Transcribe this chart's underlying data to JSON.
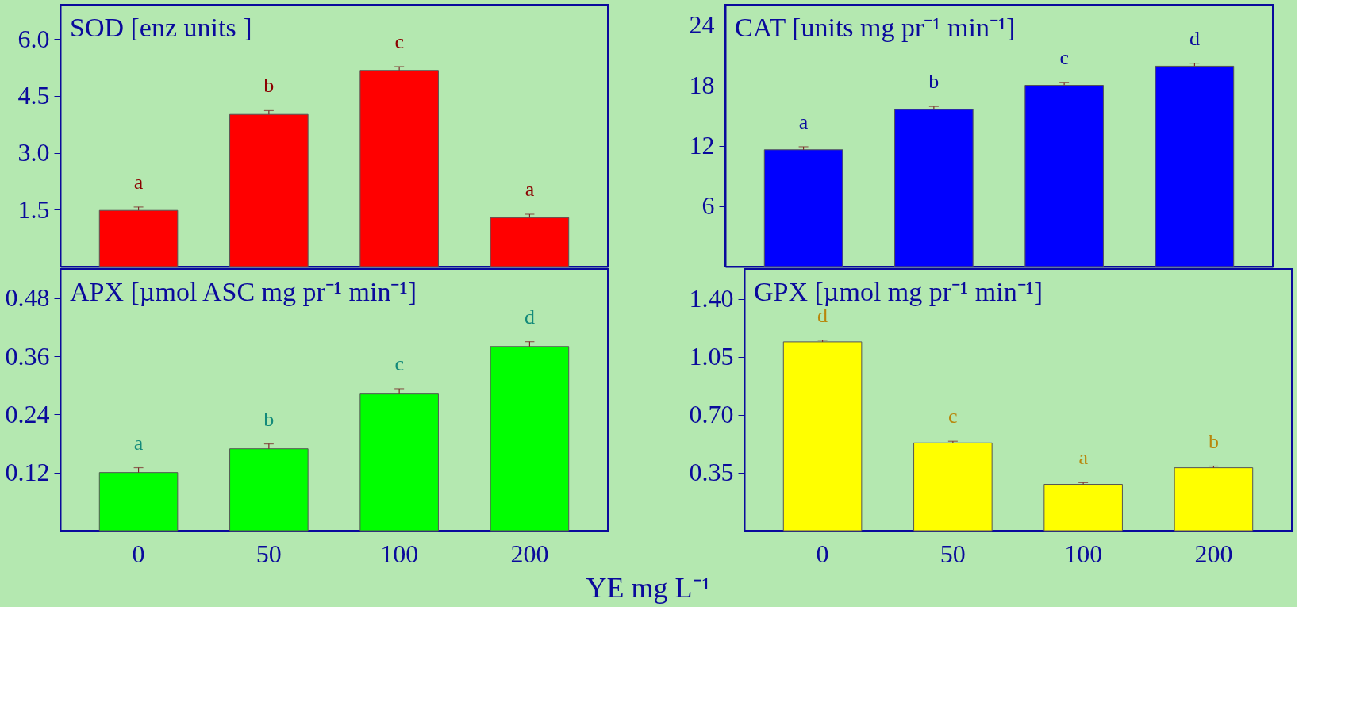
{
  "chart_data": [
    {
      "type": "bar",
      "title": "SOD [enz units ]",
      "categories": [
        "0",
        "50",
        "100",
        "200"
      ],
      "values": [
        1.48,
        4.01,
        5.17,
        1.29
      ],
      "errors": [
        0.09,
        0.1,
        0.1,
        0.09
      ],
      "color": "#ff0000",
      "ylim": [
        0,
        6.9
      ],
      "yticks": [
        1.5,
        {
          "value": 3,
          "label": "3.0"
        },
        4.5,
        {
          "value": 6,
          "label": "6.0"
        }
      ],
      "tick_labels": "y",
      "annotations": [
        {
          "text": "a",
          "x": "0",
          "y": 1.57
        },
        {
          "text": "b",
          "x": "50",
          "y": 4.11
        },
        {
          "text": "c",
          "x": "100",
          "y": 5.27
        },
        {
          "text": "a",
          "x": "200",
          "y": 1.38
        }
      ]
    },
    {
      "type": "bar",
      "title": "CAT [units mg pr⁻¹ min⁻¹]",
      "categories": [
        "0",
        "50",
        "100",
        "200"
      ],
      "values": [
        11.6,
        15.6,
        18.0,
        19.9
      ],
      "errors": [
        0.3,
        0.3,
        0.3,
        0.3
      ],
      "color": "#0000ff",
      "ylim": [
        0,
        26
      ],
      "yticks": [
        6,
        12,
        18,
        24
      ],
      "tick_labels": "y",
      "annotations": [
        {
          "text": "a",
          "x": "0",
          "y": 11.9
        },
        {
          "text": "b",
          "x": "50",
          "y": 15.9
        },
        {
          "text": "c",
          "x": "100",
          "y": 18.3
        },
        {
          "text": "d",
          "x": "200",
          "y": 20.2
        }
      ]
    },
    {
      "type": "bar",
      "title": "APX [µmol ASC mg pr⁻¹ min⁻¹]",
      "xlabel": "YE mg L⁻¹",
      "categories": [
        "0",
        "50",
        "100",
        "200"
      ],
      "values": [
        0.12,
        0.169,
        0.282,
        0.38
      ],
      "errors": [
        0.01,
        0.01,
        0.011,
        0.01
      ],
      "color": "#00ff00",
      "ylim": [
        0,
        0.54
      ],
      "yticks": [
        0.12,
        0.24,
        0.36,
        0.48
      ],
      "annotations": [
        {
          "text": "a",
          "x": "0",
          "y": 0.13
        },
        {
          "text": "b",
          "x": "50",
          "y": 0.179
        },
        {
          "text": "c",
          "x": "100",
          "y": 0.293
        },
        {
          "text": "d",
          "x": "200",
          "y": 0.39
        }
      ]
    },
    {
      "type": "bar",
      "title": "GPX [µmol mg pr⁻¹ min⁻¹]",
      "categories": [
        "0",
        "50",
        "100",
        "200"
      ],
      "values": [
        1.14,
        0.53,
        0.28,
        0.38
      ],
      "errors": [
        0.01,
        0.01,
        0.01,
        0.01
      ],
      "color": "#ffff00",
      "ylim": [
        0,
        1.58
      ],
      "yticks": [
        0.35,
        {
          "value": 0.7,
          "label": "0.70"
        },
        1.05,
        {
          "value": 1.4,
          "label": "1.40"
        }
      ],
      "annotations": [
        {
          "text": "d",
          "x": "0",
          "y": 1.15
        },
        {
          "text": "c",
          "x": "50",
          "y": 0.54
        },
        {
          "text": "a",
          "x": "100",
          "y": 0.29
        },
        {
          "text": "b",
          "x": "200",
          "y": 0.39
        }
      ]
    }
  ]
}
